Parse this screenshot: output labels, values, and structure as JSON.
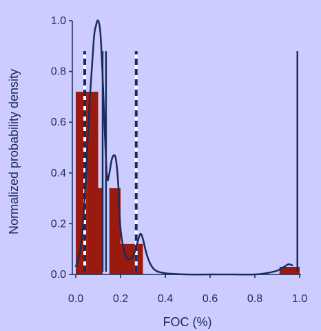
{
  "chart_data": {
    "type": "bar",
    "xlabel": "FOC (%)",
    "ylabel": "Normalized probability density",
    "xlim": [
      0.0,
      1.0
    ],
    "ylim": [
      0.0,
      1.0
    ],
    "xticks": [
      "0.0",
      "0.2",
      "0.4",
      "0.6",
      "0.8",
      "1.0"
    ],
    "yticks": [
      "0.0",
      "0.2",
      "0.4",
      "0.6",
      "0.8",
      "1.0"
    ],
    "grid": false,
    "colors": {
      "bar": "#991a0e",
      "curve": "#1a2b5e",
      "axis": "#1a2b5e",
      "background": "#ccccff"
    },
    "histogram": [
      {
        "x0": 0.0,
        "x1": 0.05,
        "value": 0.72
      },
      {
        "x0": 0.05,
        "x1": 0.1,
        "value": 0.72
      },
      {
        "x0": 0.1,
        "x1": 0.12,
        "value": 0.34
      },
      {
        "x0": 0.15,
        "x1": 0.2,
        "value": 0.34
      },
      {
        "x0": 0.2,
        "x1": 0.3,
        "value": 0.12
      },
      {
        "x0": 0.91,
        "x1": 1.0,
        "value": 0.03
      }
    ],
    "density_curve": {
      "x": [
        0.0,
        0.02,
        0.04,
        0.06,
        0.08,
        0.09,
        0.1,
        0.11,
        0.12,
        0.13,
        0.14,
        0.15,
        0.16,
        0.17,
        0.18,
        0.19,
        0.2,
        0.22,
        0.24,
        0.26,
        0.28,
        0.29,
        0.3,
        0.32,
        0.35,
        0.4,
        0.5,
        0.6,
        0.7,
        0.8,
        0.85,
        0.9,
        0.93,
        0.95,
        0.97
      ],
      "y": [
        0.03,
        0.1,
        0.3,
        0.65,
        0.92,
        0.98,
        1.0,
        0.95,
        0.78,
        0.55,
        0.38,
        0.4,
        0.45,
        0.47,
        0.45,
        0.35,
        0.18,
        0.08,
        0.06,
        0.08,
        0.14,
        0.16,
        0.14,
        0.07,
        0.02,
        0.005,
        0.0,
        0.0,
        0.0,
        0.0,
        0.005,
        0.015,
        0.03,
        0.04,
        0.035
      ]
    },
    "vertical_lines": [
      {
        "x": 0.04,
        "style": "dashed",
        "ymax": 0.88
      },
      {
        "x": 0.12,
        "style": "solid",
        "ymax": 0.88
      },
      {
        "x": 0.135,
        "style": "solid",
        "ymax": 0.88
      },
      {
        "x": 0.27,
        "style": "dashed",
        "ymax": 0.88
      },
      {
        "x": 0.99,
        "style": "solid",
        "ymax": 0.88
      }
    ]
  }
}
